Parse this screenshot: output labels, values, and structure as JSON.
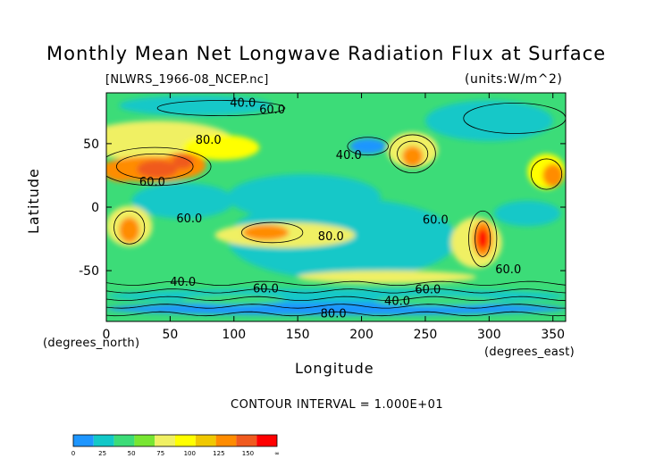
{
  "chart_data": {
    "type": "heatmap",
    "title": "Monthly Mean Net Longwave Radiation Flux at Surface",
    "source_label": "[NLWRS_1966-08_NCEP.nc]",
    "units_label": "(units:W/m^2)",
    "xlabel": "Longitude",
    "ylabel": "Latitude",
    "x_units_label": "(degrees_east)",
    "y_units_label": "(degrees_north)",
    "contour_interval_label": "CONTOUR INTERVAL = 1.000E+01",
    "xlim": [
      0,
      360
    ],
    "ylim": [
      -90,
      90
    ],
    "x_ticks": [
      0,
      50,
      100,
      150,
      200,
      250,
      300,
      350
    ],
    "y_ticks": [
      50,
      0,
      -50
    ],
    "contour_labels": [
      {
        "text": "40.0",
        "lon": 107,
        "lat": 79
      },
      {
        "text": "60.0",
        "lon": 130,
        "lat": 74
      },
      {
        "text": "80.0",
        "lon": 80,
        "lat": 50
      },
      {
        "text": "60.0",
        "lon": 36,
        "lat": 17
      },
      {
        "text": "40.0",
        "lon": 190,
        "lat": 38
      },
      {
        "text": "60.0",
        "lon": 65,
        "lat": -12
      },
      {
        "text": "60.0",
        "lon": 258,
        "lat": -13
      },
      {
        "text": "80.0",
        "lon": 176,
        "lat": -26
      },
      {
        "text": "60.0",
        "lon": 315,
        "lat": -52
      },
      {
        "text": "40.0",
        "lon": 60,
        "lat": -62
      },
      {
        "text": "60.0",
        "lon": 125,
        "lat": -67
      },
      {
        "text": "60.0",
        "lon": 252,
        "lat": -68
      },
      {
        "text": "40.0",
        "lon": 228,
        "lat": -77
      },
      {
        "text": "80.0",
        "lon": 178,
        "lat": -87
      }
    ],
    "colorbar": {
      "colors": [
        "#1e96ff",
        "#12c8c8",
        "#3cdc78",
        "#78e632",
        "#f0f064",
        "#ffff00",
        "#f0c800",
        "#ff8c00",
        "#f05a1e",
        "#ff0000"
      ],
      "tick_labels": [
        "0",
        "25",
        "50",
        "75",
        "100",
        "125",
        "150",
        "∞"
      ]
    }
  }
}
